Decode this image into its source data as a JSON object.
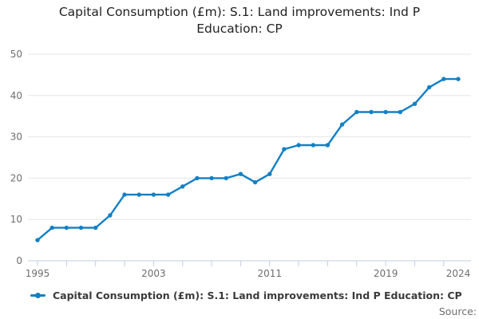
{
  "title": {
    "line1": "Capital Consumption (£m): S.1: Land improvements: Ind P",
    "line2": "Education: CP"
  },
  "legend": {
    "label": "Capital Consumption (£m): S.1: Land improvements: Ind P Education: CP"
  },
  "source_label": "Source:",
  "colors": {
    "line": "#1380c4",
    "grid": "#e6e6e6",
    "axis": "#bfcfdf",
    "tick_label": "#6e6e6e",
    "title_text": "#222222",
    "legend_text": "#3b3b3b"
  },
  "chart_data": {
    "type": "line",
    "title": "Capital Consumption (£m): S.1: Land improvements: Ind P Education: CP",
    "x": [
      1995,
      1996,
      1997,
      1998,
      1999,
      2000,
      2001,
      2002,
      2003,
      2004,
      2005,
      2006,
      2007,
      2008,
      2009,
      2010,
      2011,
      2012,
      2013,
      2014,
      2015,
      2016,
      2017,
      2018,
      2019,
      2020,
      2021,
      2022,
      2023,
      2024
    ],
    "values": [
      5,
      8,
      8,
      8,
      8,
      11,
      16,
      16,
      16,
      16,
      18,
      20,
      20,
      20,
      21,
      19,
      21,
      27,
      28,
      28,
      28,
      33,
      36,
      36,
      36,
      36,
      38,
      42,
      44,
      44
    ],
    "xlabel": "",
    "ylabel": "",
    "ylim": [
      0,
      50
    ],
    "yticks": [
      0,
      10,
      20,
      30,
      40,
      50
    ],
    "xtick_labeled_years": [
      1995,
      2003,
      2011,
      2019,
      2024
    ],
    "xtick_minor_step": 2,
    "grid": true,
    "legend_position": "bottom-left",
    "marker": "circle"
  }
}
